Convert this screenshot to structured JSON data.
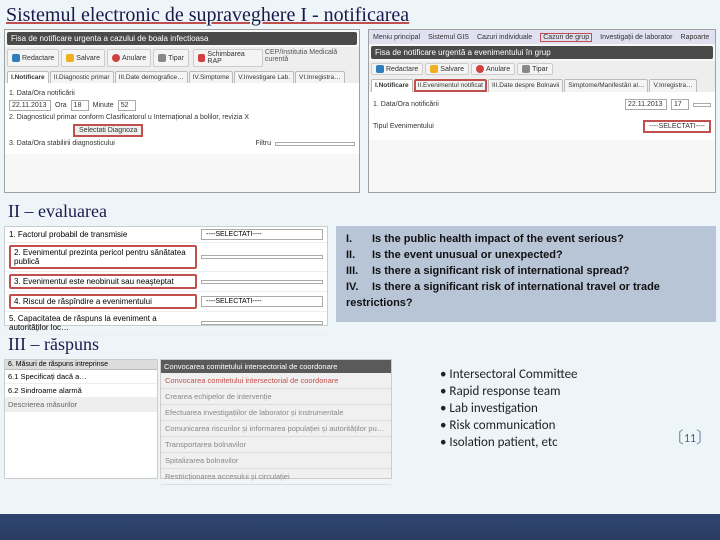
{
  "titles": {
    "main": "Sistemul electronic de supraveghere I - notificarea",
    "section2": "II – evaluarea",
    "section3": "III – răspuns"
  },
  "colors": {
    "accent_red": "#c0504d",
    "slide_bg": "#edf5f9",
    "dark_blue": "#2f4570",
    "eval_panel_bg": "#b8c5d6"
  },
  "panel_left": {
    "form_title": "Fisa de notificare urgenta a cazului de boala infectioasa",
    "menu": [
      "Redactare",
      "Salvare",
      "Anulare",
      "Tipar"
    ],
    "menu_right": "CEP/Institutia Medicală curentă",
    "schimba": "Schimbarea RAP",
    "tabs": [
      "I.Notificare",
      "II.Diagnostic primar",
      "III.Date demografice…",
      "IV.Simptome",
      "V.Investigare Lab.",
      "VI.Inregistra…"
    ],
    "line1_label": "1. Data/Ora notificării",
    "date": "22.11.2013",
    "hour_label": "Ora",
    "hour": "18",
    "min_label": "Minute",
    "min": "52",
    "line2_label": "2. Diagnosticul primar conform Clasificatorul u Internațional a bolilor, revizia X",
    "diag_btn": "Selectati Diagnoza",
    "line3_label": "3. Data/Ora stabilirii diagnosticului",
    "filter_label": "Filtru"
  },
  "panel_right": {
    "menu": [
      "Meniu principal",
      "Sistemul GIS",
      "Cazuri individuale",
      "Cazuri de grup",
      "Investigații de laborator",
      "Rapoarte"
    ],
    "form_title": "Fisa de notificare urgentă a evenimentului în grup",
    "btns": [
      "Redactare",
      "Salvare",
      "Anulare",
      "Tipar"
    ],
    "tabs": [
      "I.Notificare",
      "II.Evenimentul notificat",
      "III.Date despre Bolnavii",
      "Simptome/Manifestări al…",
      "V.Inregistra…"
    ],
    "line1_label": "1. Data/Ora notificării",
    "date": "22.11.2013",
    "hour": "17",
    "line2_label": "Tipul Evenimentului",
    "select_text": "----SELECTATI----"
  },
  "eval_left": {
    "rows": [
      {
        "num": "1.",
        "label": "Factorul probabil de transmisie",
        "red": false,
        "select": "----SELECTATI----"
      },
      {
        "num": "2.",
        "label": "Evenimentul prezinta pericol pentru sănătatea publică",
        "red": true,
        "select": ""
      },
      {
        "num": "3.",
        "label": "Evenimentul este neobinuit sau neaşteptat",
        "red": true,
        "select": ""
      },
      {
        "num": "4.",
        "label": "Riscul de răspîndire a evenimentului",
        "red": true,
        "select": "----SELECTATI----"
      },
      {
        "num": "5.",
        "label": "Capacitatea de răspuns la eveniment a autorităților loc…",
        "red": false,
        "select": ""
      }
    ]
  },
  "eval_right": {
    "lines": [
      {
        "rn": "I.",
        "txt": "Is the public health impact of the event serious?"
      },
      {
        "rn": "II.",
        "txt": "Is the event unusual or unexpected?"
      },
      {
        "rn": "III.",
        "txt": "Is there a significant risk of international spread?"
      },
      {
        "rn": "IV.",
        "txt": "Is there a significant risk of international travel or trade restrictions?"
      }
    ]
  },
  "resp_left": {
    "header": "6. Măsuri de răspuns intreprinse",
    "rows": [
      {
        "txt": "6.1 Specificați dacă a…",
        "shade": false
      },
      {
        "txt": "6.2 Sindroame alarmă",
        "shade": false
      },
      {
        "txt": "Descrierea măsurilor",
        "shade": true
      }
    ]
  },
  "resp_mid": {
    "header": "Convocarea comitetului intersectorial de coordonare",
    "rows": [
      "Convocarea comitetului intersectorial de coordonare",
      "Crearea echipelor de intervenție",
      "Efectuarea investigațiilor de laborator și instrumentale",
      "Comunicarea riscurilor și informarea populației și autorităților pu…",
      "Transportarea bolnavilor",
      "Spitalizarea bolnavilor",
      "Restricționarea accesului și circulației"
    ]
  },
  "bullets": [
    "Intersectoral Committee",
    "Rapid response team",
    "Lab investigation",
    "Risk communication",
    "Isolation patient, etc"
  ],
  "page_number": "11"
}
